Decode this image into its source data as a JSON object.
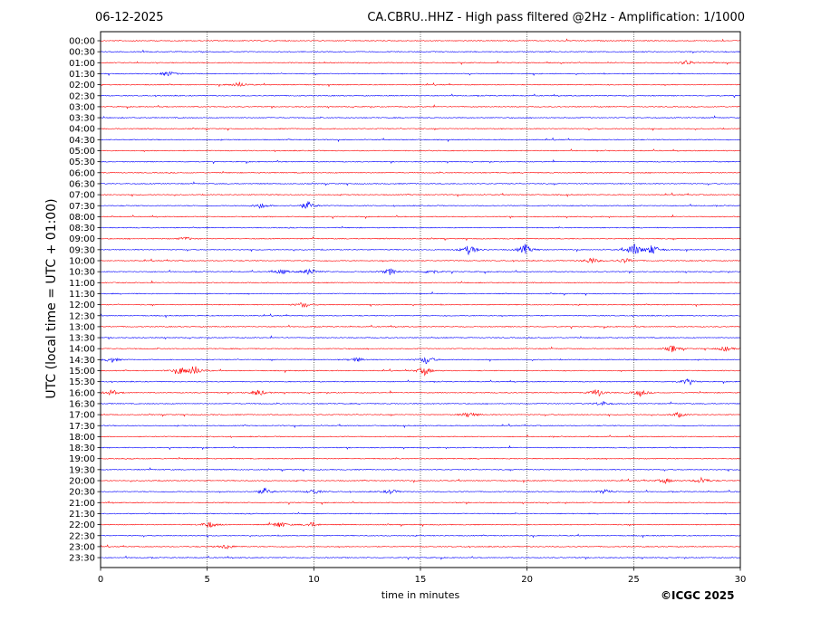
{
  "header": {
    "date": "06-12-2025",
    "title": "CA.CBRU..HHZ - High pass filtered @2Hz - Amplification: 1/1000"
  },
  "credit": "©ICGC 2025",
  "chart_data": {
    "type": "line",
    "title": "CA.CBRU..HHZ - High pass filtered @2Hz - Amplification: 1/1000",
    "xlabel": "time in minutes",
    "ylabel": "UTC (local time = UTC + 01:00)",
    "xlim": [
      0,
      30
    ],
    "xticks": [
      0,
      5,
      10,
      15,
      20,
      25,
      30
    ],
    "rows": [
      "00:00",
      "00:30",
      "01:00",
      "01:30",
      "02:00",
      "02:30",
      "03:00",
      "03:30",
      "04:00",
      "04:30",
      "05:00",
      "05:30",
      "06:00",
      "06:30",
      "07:00",
      "07:30",
      "08:00",
      "08:30",
      "09:00",
      "09:30",
      "10:00",
      "10:30",
      "11:00",
      "11:30",
      "12:00",
      "12:30",
      "13:00",
      "13:30",
      "14:00",
      "14:30",
      "15:00",
      "15:30",
      "16:00",
      "16:30",
      "17:00",
      "17:30",
      "18:00",
      "18:30",
      "19:00",
      "19:30",
      "20:00",
      "20:30",
      "21:00",
      "21:30",
      "22:00",
      "22:30",
      "23:00",
      "23:30"
    ],
    "trace_colors": [
      "#ff0000",
      "#0000ff"
    ],
    "grid": "vertical dotted at 5-minute ticks",
    "events": [
      {
        "row": "01:00",
        "minute": 27.5,
        "amplitude": 3
      },
      {
        "row": "01:30",
        "minute": 3.2,
        "amplitude": 3
      },
      {
        "row": "02:00",
        "minute": 6.5,
        "amplitude": 3
      },
      {
        "row": "07:30",
        "minute": 7.5,
        "amplitude": 3
      },
      {
        "row": "07:30",
        "minute": 9.7,
        "amplitude": 5
      },
      {
        "row": "09:00",
        "minute": 4.0,
        "amplitude": 2
      },
      {
        "row": "09:30",
        "minute": 17.3,
        "amplitude": 6
      },
      {
        "row": "09:30",
        "minute": 19.9,
        "amplitude": 6
      },
      {
        "row": "09:30",
        "minute": 25.0,
        "amplitude": 8
      },
      {
        "row": "09:30",
        "minute": 25.9,
        "amplitude": 6
      },
      {
        "row": "10:00",
        "minute": 23.0,
        "amplitude": 4
      },
      {
        "row": "10:00",
        "minute": 24.6,
        "amplitude": 3
      },
      {
        "row": "10:30",
        "minute": 8.5,
        "amplitude": 3
      },
      {
        "row": "10:30",
        "minute": 9.8,
        "amplitude": 4
      },
      {
        "row": "10:30",
        "minute": 13.6,
        "amplitude": 4
      },
      {
        "row": "10:30",
        "minute": 15.5,
        "amplitude": 3
      },
      {
        "row": "12:00",
        "minute": 9.5,
        "amplitude": 3
      },
      {
        "row": "14:00",
        "minute": 26.8,
        "amplitude": 4
      },
      {
        "row": "14:00",
        "minute": 29.3,
        "amplitude": 3
      },
      {
        "row": "14:30",
        "minute": 0.5,
        "amplitude": 3
      },
      {
        "row": "14:30",
        "minute": 12.0,
        "amplitude": 3
      },
      {
        "row": "14:30",
        "minute": 15.3,
        "amplitude": 5
      },
      {
        "row": "15:00",
        "minute": 3.7,
        "amplitude": 4
      },
      {
        "row": "15:00",
        "minute": 4.4,
        "amplitude": 6
      },
      {
        "row": "15:00",
        "minute": 15.2,
        "amplitude": 5
      },
      {
        "row": "15:30",
        "minute": 27.5,
        "amplitude": 3
      },
      {
        "row": "16:00",
        "minute": 0.5,
        "amplitude": 3
      },
      {
        "row": "16:00",
        "minute": 7.4,
        "amplitude": 4
      },
      {
        "row": "16:00",
        "minute": 23.3,
        "amplitude": 5
      },
      {
        "row": "16:00",
        "minute": 25.3,
        "amplitude": 4
      },
      {
        "row": "16:30",
        "minute": 23.5,
        "amplitude": 3
      },
      {
        "row": "17:00",
        "minute": 17.3,
        "amplitude": 4
      },
      {
        "row": "17:00",
        "minute": 27.1,
        "amplitude": 3
      },
      {
        "row": "20:00",
        "minute": 26.5,
        "amplitude": 3
      },
      {
        "row": "20:00",
        "minute": 28.2,
        "amplitude": 4
      },
      {
        "row": "20:30",
        "minute": 7.7,
        "amplitude": 4
      },
      {
        "row": "20:30",
        "minute": 10.0,
        "amplitude": 3
      },
      {
        "row": "20:30",
        "minute": 13.6,
        "amplitude": 3
      },
      {
        "row": "20:30",
        "minute": 23.7,
        "amplitude": 3
      },
      {
        "row": "22:00",
        "minute": 5.1,
        "amplitude": 4
      },
      {
        "row": "22:00",
        "minute": 8.4,
        "amplitude": 4
      },
      {
        "row": "22:00",
        "minute": 9.9,
        "amplitude": 3
      },
      {
        "row": "23:00",
        "minute": 5.9,
        "amplitude": 3
      }
    ]
  }
}
